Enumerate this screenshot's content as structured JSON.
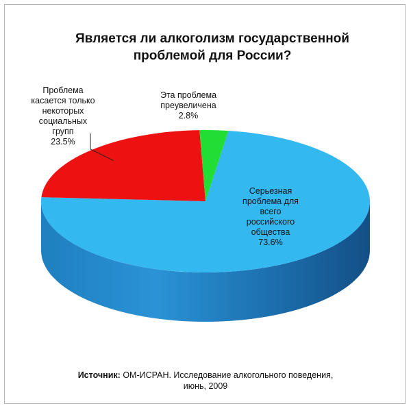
{
  "chart_data": {
    "type": "pie",
    "title": "Является ли алкоголизм государственной проблемой для России?",
    "title_lines": [
      "Является ли алкоголизм государственной",
      "проблемой для России?"
    ],
    "slices": [
      {
        "label": "Серьезная проблема для всего российского общества",
        "label_lines": [
          "Серьезная",
          "проблема для",
          "всего",
          "российского",
          "общества"
        ],
        "value": 73.6,
        "value_text": "73.6%",
        "color": "#33b8f0"
      },
      {
        "label": "Проблема касается только некоторых социальных групп",
        "label_lines": [
          "Проблема",
          "касается только",
          "некоторых",
          "социальных",
          "групп"
        ],
        "value": 23.5,
        "value_text": "23.5%",
        "color": "#ee1111"
      },
      {
        "label": "Эта проблема преувеличена",
        "label_lines": [
          "Эта проблема",
          "преувеличена"
        ],
        "value": 2.8,
        "value_text": "2.8%",
        "color": "#22dd33"
      }
    ]
  },
  "source": {
    "prefix": "Источник:",
    "text": "ОМ-ИСРАН. Исследование алкогольного поведения,",
    "date": "июнь, 2009"
  }
}
